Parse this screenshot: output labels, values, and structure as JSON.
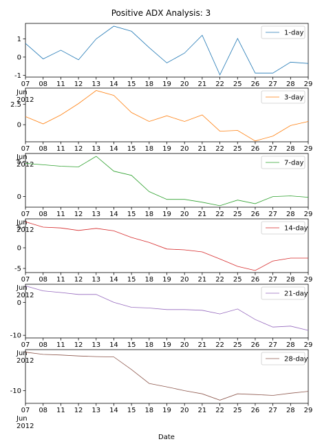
{
  "chart_data": {
    "type": "line",
    "title": "Positive ADX Analysis: 3",
    "xlabel": "Date",
    "x": [
      "07",
      "08",
      "11",
      "12",
      "13",
      "14",
      "15",
      "18",
      "19",
      "20",
      "21",
      "22",
      "25",
      "26",
      "27",
      "28",
      "29"
    ],
    "x_sub": [
      "Jun",
      "2012"
    ],
    "legend_placement": "upper right",
    "grid": false,
    "panels": [
      {
        "name": "1-day",
        "color": "#1f77b4",
        "yticks": [
          -1,
          0,
          1
        ],
        "ylim": [
          -1.1,
          1.85
        ],
        "values": [
          0.75,
          -0.1,
          0.38,
          -0.15,
          1.0,
          1.7,
          1.42,
          0.52,
          -0.32,
          0.22,
          1.2,
          -0.98,
          1.02,
          -0.88,
          -0.88,
          -0.28,
          -0.35
        ]
      },
      {
        "name": "3-day",
        "color": "#ff7f0e",
        "yticks": [
          0.0,
          2.5
        ],
        "ylim": [
          -2.1,
          4.5
        ],
        "values": [
          1.0,
          0.1,
          1.2,
          2.6,
          4.2,
          3.6,
          1.5,
          0.4,
          1.1,
          0.4,
          1.2,
          -0.8,
          -0.7,
          -2.0,
          -1.4,
          -0.1,
          0.4
        ]
      },
      {
        "name": "7-day",
        "color": "#2ca02c",
        "yticks": [
          0,
          5
        ],
        "ylim": [
          -1.5,
          6.1
        ],
        "values": [
          4.7,
          4.5,
          4.3,
          4.2,
          5.7,
          3.6,
          3.0,
          0.7,
          -0.4,
          -0.4,
          -0.8,
          -1.3,
          -0.5,
          -1.0,
          0.0,
          0.1,
          -0.1
        ]
      },
      {
        "name": "14-day",
        "color": "#d62728",
        "yticks": [
          -5,
          0,
          5
        ],
        "ylim": [
          -6.0,
          7.0
        ],
        "values": [
          6.3,
          5.0,
          4.8,
          4.2,
          4.7,
          4.1,
          2.5,
          1.3,
          -0.3,
          -0.5,
          -1.0,
          -2.7,
          -4.5,
          -5.5,
          -3.2,
          -2.5,
          -2.5
        ]
      },
      {
        "name": "21-day",
        "color": "#9467bd",
        "yticks": [
          -10,
          0
        ],
        "ylim": [
          -10.8,
          5.5
        ],
        "values": [
          5.0,
          3.5,
          3.0,
          2.4,
          2.4,
          0.0,
          -1.5,
          -1.7,
          -2.2,
          -2.2,
          -2.4,
          -3.5,
          -2.0,
          -5.2,
          -7.5,
          -7.2,
          -8.5
        ]
      },
      {
        "name": "28-day",
        "color": "#8c564b",
        "yticks": [
          -10
        ],
        "ylim": [
          -14.0,
          3.0
        ],
        "values": [
          2.2,
          1.5,
          1.3,
          1.0,
          0.8,
          0.7,
          -3.3,
          -7.7,
          -8.8,
          -10.0,
          -11.0,
          -13.0,
          -11.0,
          -11.2,
          -11.5,
          -10.8,
          -10.2
        ]
      }
    ]
  }
}
